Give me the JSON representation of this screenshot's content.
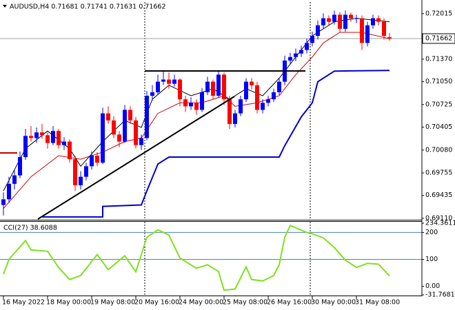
{
  "chart_data": [
    {
      "type": "candlestick",
      "title": "AUDUSD,H4  0.71681 0.71741 0.71631 0.71662",
      "up_color": "#0000ff",
      "down_color": "#ff0000",
      "candles": [
        [
          0.693,
          0.6948,
          0.6915,
          0.6938
        ],
        [
          0.6938,
          0.697,
          0.6933,
          0.696
        ],
        [
          0.696,
          0.698,
          0.6952,
          0.6972
        ],
        [
          0.6972,
          0.7006,
          0.6968,
          0.6998
        ],
        [
          0.6998,
          0.7038,
          0.6994,
          0.7028
        ],
        [
          0.7028,
          0.7042,
          0.702,
          0.7025
        ],
        [
          0.7025,
          0.704,
          0.7018,
          0.7033
        ],
        [
          0.7033,
          0.7045,
          0.7024,
          0.7029
        ],
        [
          0.7029,
          0.7033,
          0.701,
          0.7018
        ],
        [
          0.7018,
          0.7042,
          0.7015,
          0.7035
        ],
        [
          0.7035,
          0.7038,
          0.701,
          0.7015
        ],
        [
          0.7015,
          0.7026,
          0.7008,
          0.702
        ],
        [
          0.702,
          0.7023,
          0.699,
          0.6995
        ],
        [
          0.6995,
          0.7,
          0.695,
          0.6958
        ],
        [
          0.6958,
          0.6978,
          0.6952,
          0.697
        ],
        [
          0.697,
          0.699,
          0.6965,
          0.6985
        ],
        [
          0.6985,
          0.7006,
          0.698,
          0.7
        ],
        [
          0.7,
          0.7005,
          0.6985,
          0.699
        ],
        [
          0.699,
          0.7068,
          0.6988,
          0.706
        ],
        [
          0.706,
          0.707,
          0.7045,
          0.705
        ],
        [
          0.705,
          0.7056,
          0.7025,
          0.703
        ],
        [
          0.703,
          0.7035,
          0.7012,
          0.702
        ],
        [
          0.702,
          0.7072,
          0.7018,
          0.7065
        ],
        [
          0.7065,
          0.707,
          0.7045,
          0.705
        ],
        [
          0.705,
          0.7055,
          0.701,
          0.7015
        ],
        [
          0.7015,
          0.703,
          0.7008,
          0.7025
        ],
        [
          0.7025,
          0.7092,
          0.7022,
          0.7085
        ],
        [
          0.7085,
          0.71,
          0.7078,
          0.709
        ],
        [
          0.709,
          0.7115,
          0.7086,
          0.7105
        ],
        [
          0.7105,
          0.712,
          0.71,
          0.7108
        ],
        [
          0.7108,
          0.7118,
          0.7095,
          0.7102
        ],
        [
          0.7102,
          0.7115,
          0.7098,
          0.7108
        ],
        [
          0.7108,
          0.711,
          0.707,
          0.708
        ],
        [
          0.708,
          0.7085,
          0.7062,
          0.707
        ],
        [
          0.707,
          0.7083,
          0.7065,
          0.7075
        ],
        [
          0.7075,
          0.708,
          0.7058,
          0.7065
        ],
        [
          0.7065,
          0.7096,
          0.7062,
          0.709
        ],
        [
          0.709,
          0.7112,
          0.7086,
          0.7105
        ],
        [
          0.7105,
          0.7108,
          0.708,
          0.7085
        ],
        [
          0.7085,
          0.712,
          0.7082,
          0.7115
        ],
        [
          0.7115,
          0.7118,
          0.7072,
          0.708
        ],
        [
          0.708,
          0.7085,
          0.7038,
          0.7045
        ],
        [
          0.7045,
          0.7065,
          0.704,
          0.706
        ],
        [
          0.706,
          0.7085,
          0.7056,
          0.708
        ],
        [
          0.708,
          0.711,
          0.7076,
          0.7105
        ],
        [
          0.7105,
          0.711,
          0.7094,
          0.71
        ],
        [
          0.71,
          0.7105,
          0.706,
          0.7065
        ],
        [
          0.7065,
          0.708,
          0.706,
          0.7075
        ],
        [
          0.7075,
          0.7085,
          0.707,
          0.708
        ],
        [
          0.708,
          0.7095,
          0.7076,
          0.709
        ],
        [
          0.709,
          0.711,
          0.7086,
          0.7105
        ],
        [
          0.7105,
          0.7142,
          0.71,
          0.7135
        ],
        [
          0.7135,
          0.7146,
          0.713,
          0.714
        ],
        [
          0.714,
          0.7152,
          0.7134,
          0.7145
        ],
        [
          0.7145,
          0.7156,
          0.714,
          0.715
        ],
        [
          0.715,
          0.7166,
          0.7145,
          0.716
        ],
        [
          0.716,
          0.7176,
          0.7155,
          0.717
        ],
        [
          0.717,
          0.7192,
          0.7165,
          0.7185
        ],
        [
          0.7185,
          0.7202,
          0.718,
          0.7195
        ],
        [
          0.7195,
          0.7199,
          0.7185,
          0.719
        ],
        [
          0.719,
          0.7206,
          0.7186,
          0.72
        ],
        [
          0.72,
          0.7204,
          0.7175,
          0.718
        ],
        [
          0.718,
          0.7206,
          0.7176,
          0.72
        ],
        [
          0.72,
          0.7203,
          0.719,
          0.7195
        ],
        [
          0.7195,
          0.72,
          0.7188,
          0.7195
        ],
        [
          0.7195,
          0.7199,
          0.715,
          0.716
        ],
        [
          0.716,
          0.719,
          0.7155,
          0.7185
        ],
        [
          0.7185,
          0.72,
          0.718,
          0.7195
        ],
        [
          0.7195,
          0.7199,
          0.7185,
          0.719
        ],
        [
          0.719,
          0.7195,
          0.7165,
          0.717
        ],
        [
          0.71681,
          0.71741,
          0.71631,
          0.71662
        ]
      ],
      "overlays": [
        {
          "color": "#0000cc",
          "x": [
            7,
            18,
            18,
            25,
            26,
            28,
            30,
            50,
            51,
            54,
            56,
            57,
            60,
            70
          ],
          "values": [
            0.6913,
            0.6913,
            0.6928,
            0.693,
            0.695,
            0.6988,
            0.6998,
            0.6998,
            0.7014,
            0.7055,
            0.7075,
            0.7105,
            0.712,
            0.7121
          ]
        },
        {
          "color": "#cc0000",
          "x": [
            0,
            5,
            10,
            14,
            18,
            22,
            25,
            28,
            32,
            36,
            40,
            42,
            46,
            50,
            53,
            56,
            58,
            61,
            65,
            70
          ],
          "values": [
            0.6925,
            0.697,
            0.7,
            0.6995,
            0.7005,
            0.702,
            0.7025,
            0.706,
            0.7075,
            0.7075,
            0.7085,
            0.707,
            0.7075,
            0.7085,
            0.7115,
            0.714,
            0.716,
            0.7175,
            0.7175,
            0.7166
          ]
        },
        {
          "color": "#000000",
          "x": [
            0,
            4,
            8,
            12,
            14,
            18,
            22,
            25,
            27,
            30,
            34,
            38,
            41,
            44,
            47,
            50,
            53,
            56,
            60,
            64,
            70
          ],
          "values": [
            0.695,
            0.701,
            0.7035,
            0.701,
            0.6985,
            0.702,
            0.705,
            0.704,
            0.708,
            0.71,
            0.7085,
            0.7095,
            0.708,
            0.7095,
            0.7085,
            0.711,
            0.714,
            0.717,
            0.719,
            0.7195,
            0.719
          ]
        }
      ],
      "xlim": [
        -0.625,
        75.875
      ],
      "xticks": [
        {
          "value": 0,
          "label": "16 May 2022"
        },
        {
          "value": 8,
          "label": "18 May 00:00"
        },
        {
          "value": 16,
          "label": "19 May 08:00"
        },
        {
          "value": 24,
          "label": "20 May 16:00"
        },
        {
          "value": 32,
          "label": "24 May 00:00"
        },
        {
          "value": 40,
          "label": "25 May 08:00"
        },
        {
          "value": 48,
          "label": "26 May 16:00"
        },
        {
          "value": 56,
          "label": "30 May 00:00"
        },
        {
          "value": 64,
          "label": "31 May 08:00"
        }
      ],
      "ylim": [
        0.691,
        0.7218
      ],
      "yticks": [
        0.72015,
        {
          "value": 0.7137,
          "label": "0.71370"
        },
        {
          "value": 0.7105,
          "label": "0.71050"
        },
        0.70725,
        0.70405,
        {
          "value": 0.7008,
          "label": "0.70080"
        },
        0.69755,
        0.69435,
        {
          "value": 0.6911,
          "label": "0.69110"
        }
      ],
      "current_price": 0.71662
    },
    {
      "type": "line",
      "title": "CCI(27) 38.6088",
      "color": "#7fe020",
      "x": [
        0,
        1,
        4,
        5,
        8,
        10,
        12,
        14,
        17,
        19,
        22,
        24,
        26,
        28,
        30,
        32,
        35,
        37,
        39,
        40,
        42,
        44,
        45,
        47,
        49,
        50,
        51,
        52,
        55,
        56,
        58,
        60,
        62,
        64,
        66,
        68,
        70
      ],
      "values": [
        45,
        100,
        170,
        135,
        130,
        70,
        25,
        40,
        118,
        62,
        113,
        54,
        182,
        210,
        190,
        105,
        67,
        80,
        55,
        -15,
        -10,
        72,
        25,
        20,
        40,
        80,
        182,
        226,
        200,
        195,
        180,
        144,
        97,
        70,
        85,
        82,
        38.6088
      ],
      "ylim": [
        -31.7681,
        234.3611
      ],
      "yticks": [
        234.3611,
        200,
        100,
        {
          "value": 0,
          "label": "0.00"
        },
        -31.7681
      ],
      "levels": [
        100,
        200
      ],
      "level_color": "#4682b4"
    }
  ]
}
